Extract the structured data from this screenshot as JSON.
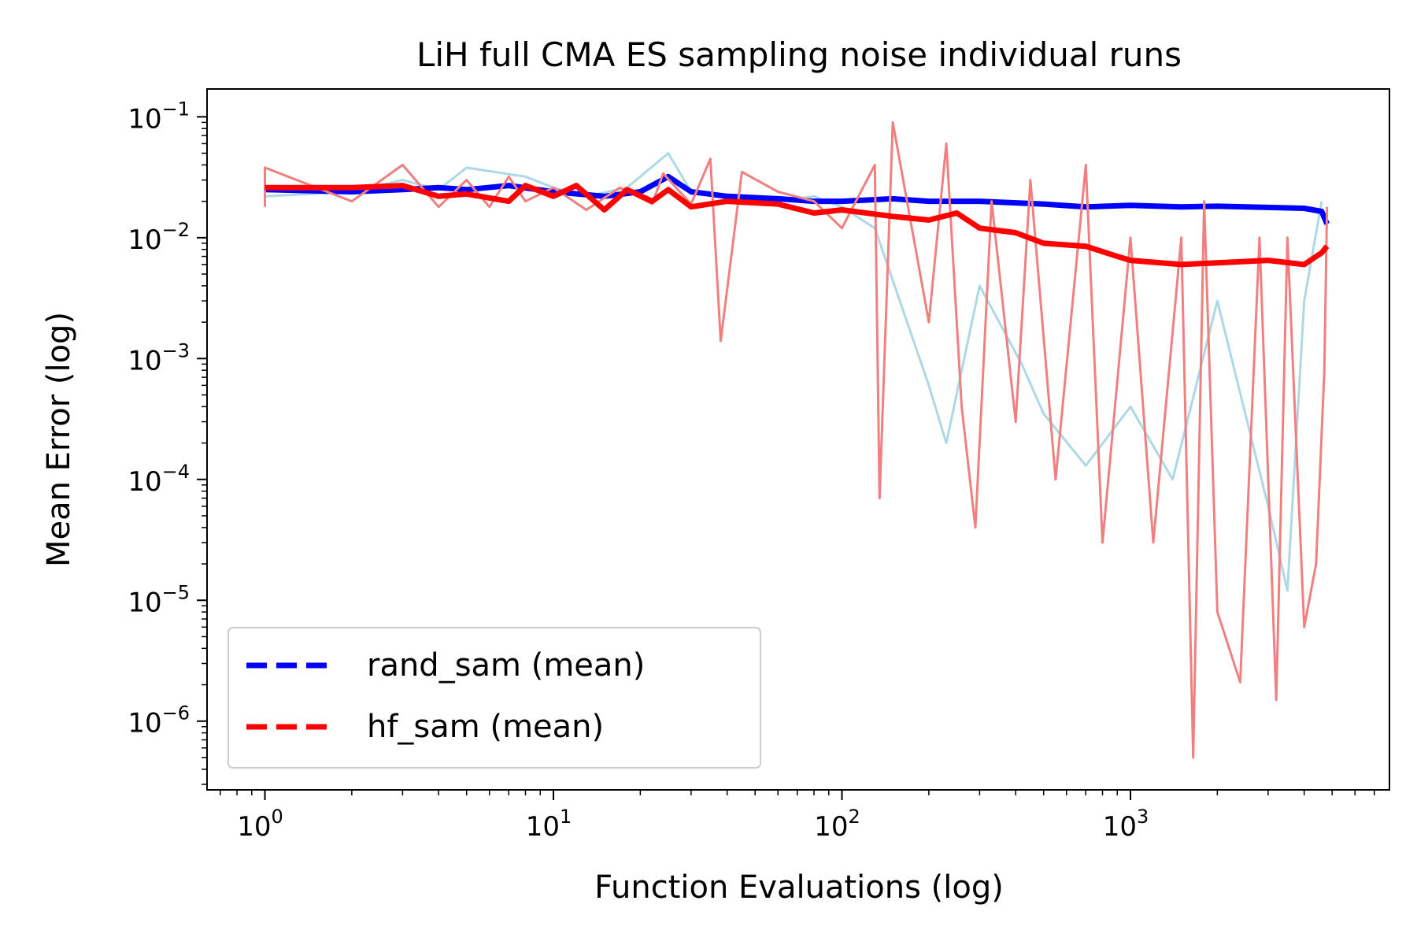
{
  "chart_data": {
    "type": "line",
    "title": "LiH full CMA ES sampling noise individual runs",
    "xlabel": "Function Evaluations (log)",
    "ylabel": "Mean Error (log)",
    "xscale": "log",
    "yscale": "log",
    "xlim": [
      0.63,
      7900
    ],
    "ylim": [
      2.7e-07,
      0.17
    ],
    "x_ticks": [
      {
        "value": 1,
        "base": "10",
        "exp": "0"
      },
      {
        "value": 10,
        "base": "10",
        "exp": "1"
      },
      {
        "value": 100,
        "base": "10",
        "exp": "2"
      },
      {
        "value": 1000,
        "base": "10",
        "exp": "3"
      }
    ],
    "y_ticks": [
      {
        "value": 0.1,
        "base": "10",
        "exp": "−1"
      },
      {
        "value": 0.01,
        "base": "10",
        "exp": "−2"
      },
      {
        "value": 0.001,
        "base": "10",
        "exp": "−3"
      },
      {
        "value": 0.0001,
        "base": "10",
        "exp": "−4"
      },
      {
        "value": 1e-05,
        "base": "10",
        "exp": "−5"
      },
      {
        "value": 1e-06,
        "base": "10",
        "exp": "−6"
      }
    ],
    "legend_position": "lower-left",
    "series": [
      {
        "name": "rand_sam (individual runs)",
        "color": "#add8e6",
        "in_legend": false,
        "points": [
          [
            1,
            0.022
          ],
          [
            2,
            0.024
          ],
          [
            3,
            0.03
          ],
          [
            4,
            0.025
          ],
          [
            5,
            0.038
          ],
          [
            8,
            0.032
          ],
          [
            10,
            0.026
          ],
          [
            13,
            0.022
          ],
          [
            18,
            0.026
          ],
          [
            25,
            0.05
          ],
          [
            30,
            0.024
          ],
          [
            40,
            0.022
          ],
          [
            60,
            0.02
          ],
          [
            80,
            0.022
          ],
          [
            100,
            0.018
          ],
          [
            130,
            0.012
          ],
          [
            200,
            0.0006
          ],
          [
            230,
            0.0002
          ],
          [
            300,
            0.004
          ],
          [
            420,
            0.0009
          ],
          [
            500,
            0.00035
          ],
          [
            700,
            0.00013
          ],
          [
            1000,
            0.0004
          ],
          [
            1400,
            0.0001
          ],
          [
            2000,
            0.003
          ],
          [
            3000,
            6e-05
          ],
          [
            3500,
            1.2e-05
          ],
          [
            4000,
            0.003
          ],
          [
            4600,
            0.02
          ]
        ]
      },
      {
        "name": "rand_sam (mean)",
        "color": "#0000ff",
        "in_legend": true,
        "legend_label": "rand_sam (mean)",
        "points": [
          [
            1,
            0.025
          ],
          [
            2,
            0.024
          ],
          [
            3,
            0.025
          ],
          [
            4,
            0.026
          ],
          [
            5,
            0.025
          ],
          [
            7,
            0.027
          ],
          [
            10,
            0.024
          ],
          [
            15,
            0.022
          ],
          [
            20,
            0.024
          ],
          [
            25,
            0.032
          ],
          [
            30,
            0.024
          ],
          [
            40,
            0.022
          ],
          [
            60,
            0.021
          ],
          [
            80,
            0.02
          ],
          [
            100,
            0.02
          ],
          [
            150,
            0.021
          ],
          [
            200,
            0.02
          ],
          [
            300,
            0.02
          ],
          [
            500,
            0.019
          ],
          [
            700,
            0.018
          ],
          [
            1000,
            0.0185
          ],
          [
            1500,
            0.018
          ],
          [
            2000,
            0.0182
          ],
          [
            3000,
            0.0178
          ],
          [
            4000,
            0.0175
          ],
          [
            4600,
            0.0165
          ],
          [
            4800,
            0.013
          ]
        ]
      },
      {
        "name": "hf_sam (individual runs)",
        "color": "#f08080",
        "in_legend": false,
        "points": [
          [
            1,
            0.018
          ],
          [
            1,
            0.038
          ],
          [
            2,
            0.02
          ],
          [
            3,
            0.04
          ],
          [
            4,
            0.018
          ],
          [
            5,
            0.03
          ],
          [
            6,
            0.018
          ],
          [
            7,
            0.032
          ],
          [
            8,
            0.02
          ],
          [
            10,
            0.026
          ],
          [
            13,
            0.017
          ],
          [
            17,
            0.026
          ],
          [
            22,
            0.019
          ],
          [
            24,
            0.034
          ],
          [
            30,
            0.019
          ],
          [
            35,
            0.045
          ],
          [
            38,
            0.0014
          ],
          [
            45,
            0.035
          ],
          [
            60,
            0.024
          ],
          [
            80,
            0.02
          ],
          [
            100,
            0.012
          ],
          [
            130,
            0.04
          ],
          [
            135,
            7e-05
          ],
          [
            150,
            0.09
          ],
          [
            200,
            0.002
          ],
          [
            230,
            0.06
          ],
          [
            260,
            0.0004
          ],
          [
            290,
            4e-05
          ],
          [
            330,
            0.02
          ],
          [
            400,
            0.0003
          ],
          [
            450,
            0.03
          ],
          [
            550,
            0.0001
          ],
          [
            700,
            0.04
          ],
          [
            800,
            3e-05
          ],
          [
            1000,
            0.01
          ],
          [
            1200,
            3e-05
          ],
          [
            1500,
            0.01
          ],
          [
            1650,
            5e-07
          ],
          [
            1800,
            0.02
          ],
          [
            2000,
            8e-06
          ],
          [
            2400,
            2.1e-06
          ],
          [
            2800,
            0.01
          ],
          [
            3200,
            1.5e-06
          ],
          [
            3500,
            0.01
          ],
          [
            4000,
            6e-06
          ],
          [
            4400,
            2e-05
          ],
          [
            4700,
            0.0008
          ],
          [
            4800,
            0.018
          ]
        ]
      },
      {
        "name": "hf_sam (mean)",
        "color": "#ff0000",
        "in_legend": true,
        "legend_label": "hf_sam (mean)",
        "points": [
          [
            1,
            0.026
          ],
          [
            2,
            0.026
          ],
          [
            3,
            0.027
          ],
          [
            4,
            0.022
          ],
          [
            5,
            0.023
          ],
          [
            7,
            0.02
          ],
          [
            8,
            0.027
          ],
          [
            10,
            0.022
          ],
          [
            12,
            0.027
          ],
          [
            15,
            0.017
          ],
          [
            18,
            0.025
          ],
          [
            22,
            0.02
          ],
          [
            25,
            0.025
          ],
          [
            30,
            0.018
          ],
          [
            40,
            0.02
          ],
          [
            60,
            0.019
          ],
          [
            80,
            0.016
          ],
          [
            100,
            0.017
          ],
          [
            150,
            0.015
          ],
          [
            200,
            0.014
          ],
          [
            250,
            0.016
          ],
          [
            300,
            0.012
          ],
          [
            400,
            0.011
          ],
          [
            500,
            0.009
          ],
          [
            700,
            0.0085
          ],
          [
            900,
            0.007
          ],
          [
            1000,
            0.0065
          ],
          [
            1500,
            0.006
          ],
          [
            2000,
            0.0062
          ],
          [
            3000,
            0.0065
          ],
          [
            4000,
            0.006
          ],
          [
            4600,
            0.0075
          ],
          [
            4800,
            0.0085
          ]
        ]
      }
    ]
  }
}
